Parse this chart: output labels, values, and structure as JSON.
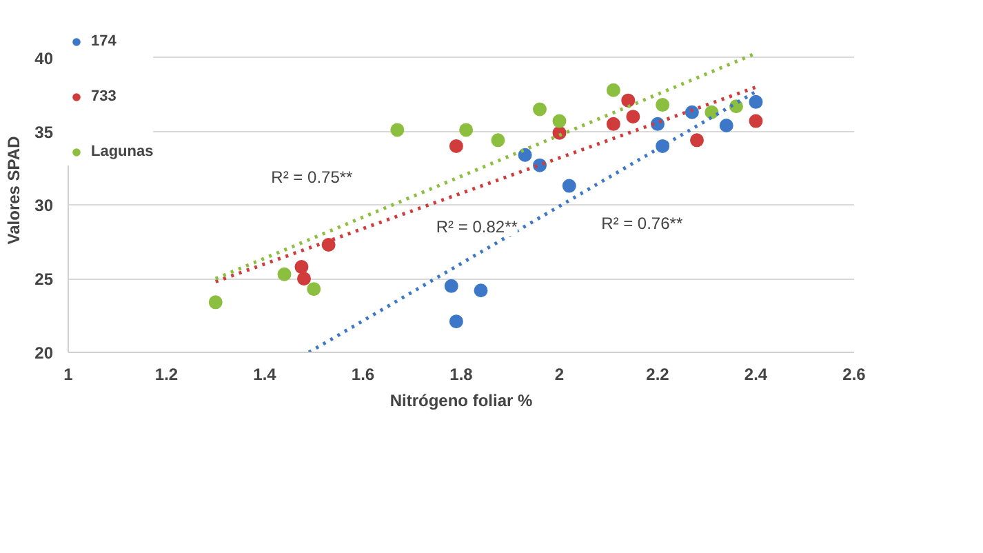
{
  "chart_data": {
    "type": "scatter",
    "xlabel": "Nitrógeno foliar %",
    "ylabel": "Valores SPAD",
    "xlim": [
      1,
      2.6
    ],
    "xticks": [
      1,
      1.2,
      1.4,
      1.6,
      1.8,
      2,
      2.2,
      2.4,
      2.6
    ],
    "ylim": [
      20,
      42
    ],
    "yticks": [
      20,
      25,
      30,
      35,
      40
    ],
    "grid": "y",
    "legend": "top left",
    "marker": "circle",
    "series": [
      {
        "name": "174",
        "color": "#3d78c8",
        "x": [
          1.78,
          1.84,
          1.79,
          1.93,
          1.96,
          2.02,
          2.2,
          2.21,
          2.27,
          2.34,
          2.4
        ],
        "values": [
          24.5,
          24.2,
          22.1,
          33.4,
          32.7,
          31.3,
          35.5,
          34.0,
          36.3,
          35.4,
          37.0
        ]
      },
      {
        "name": "733",
        "color": "#d03c3c",
        "x": [
          1.475,
          1.48,
          1.53,
          1.79,
          2.0,
          2.11,
          2.14,
          2.15,
          2.28,
          2.4
        ],
        "values": [
          25.8,
          25.0,
          27.3,
          34.0,
          34.9,
          35.5,
          37.1,
          36.0,
          34.4,
          35.7
        ]
      },
      {
        "name": "Lagunas",
        "color": "#8cbf3f",
        "x": [
          1.3,
          1.44,
          1.5,
          1.67,
          1.81,
          1.875,
          1.96,
          2.0,
          2.11,
          2.21,
          2.31,
          2.36
        ],
        "values": [
          23.4,
          25.3,
          24.3,
          35.1,
          35.1,
          34.4,
          36.5,
          35.7,
          37.8,
          36.8,
          36.3,
          36.7
        ]
      },
      {
        "type": "line",
        "line_style": "dotted",
        "marker": "none",
        "color": "#3d78c8",
        "x": [
          1.49,
          2.4
        ],
        "values": [
          20,
          37.7
        ]
      },
      {
        "type": "line",
        "line_style": "dotted",
        "marker": "none",
        "color": "#d03c3c",
        "x": [
          1.3,
          2.4
        ],
        "values": [
          24.8,
          38.0
        ]
      },
      {
        "type": "line",
        "line_style": "dotted",
        "marker": "none",
        "color": "#8cbf3f",
        "x": [
          1.3,
          2.4
        ],
        "values": [
          25.0,
          40.3
        ]
      }
    ],
    "annotations": [
      "R² = 0.75**",
      "R² = 0.82**",
      "R² = 0.76**"
    ]
  }
}
